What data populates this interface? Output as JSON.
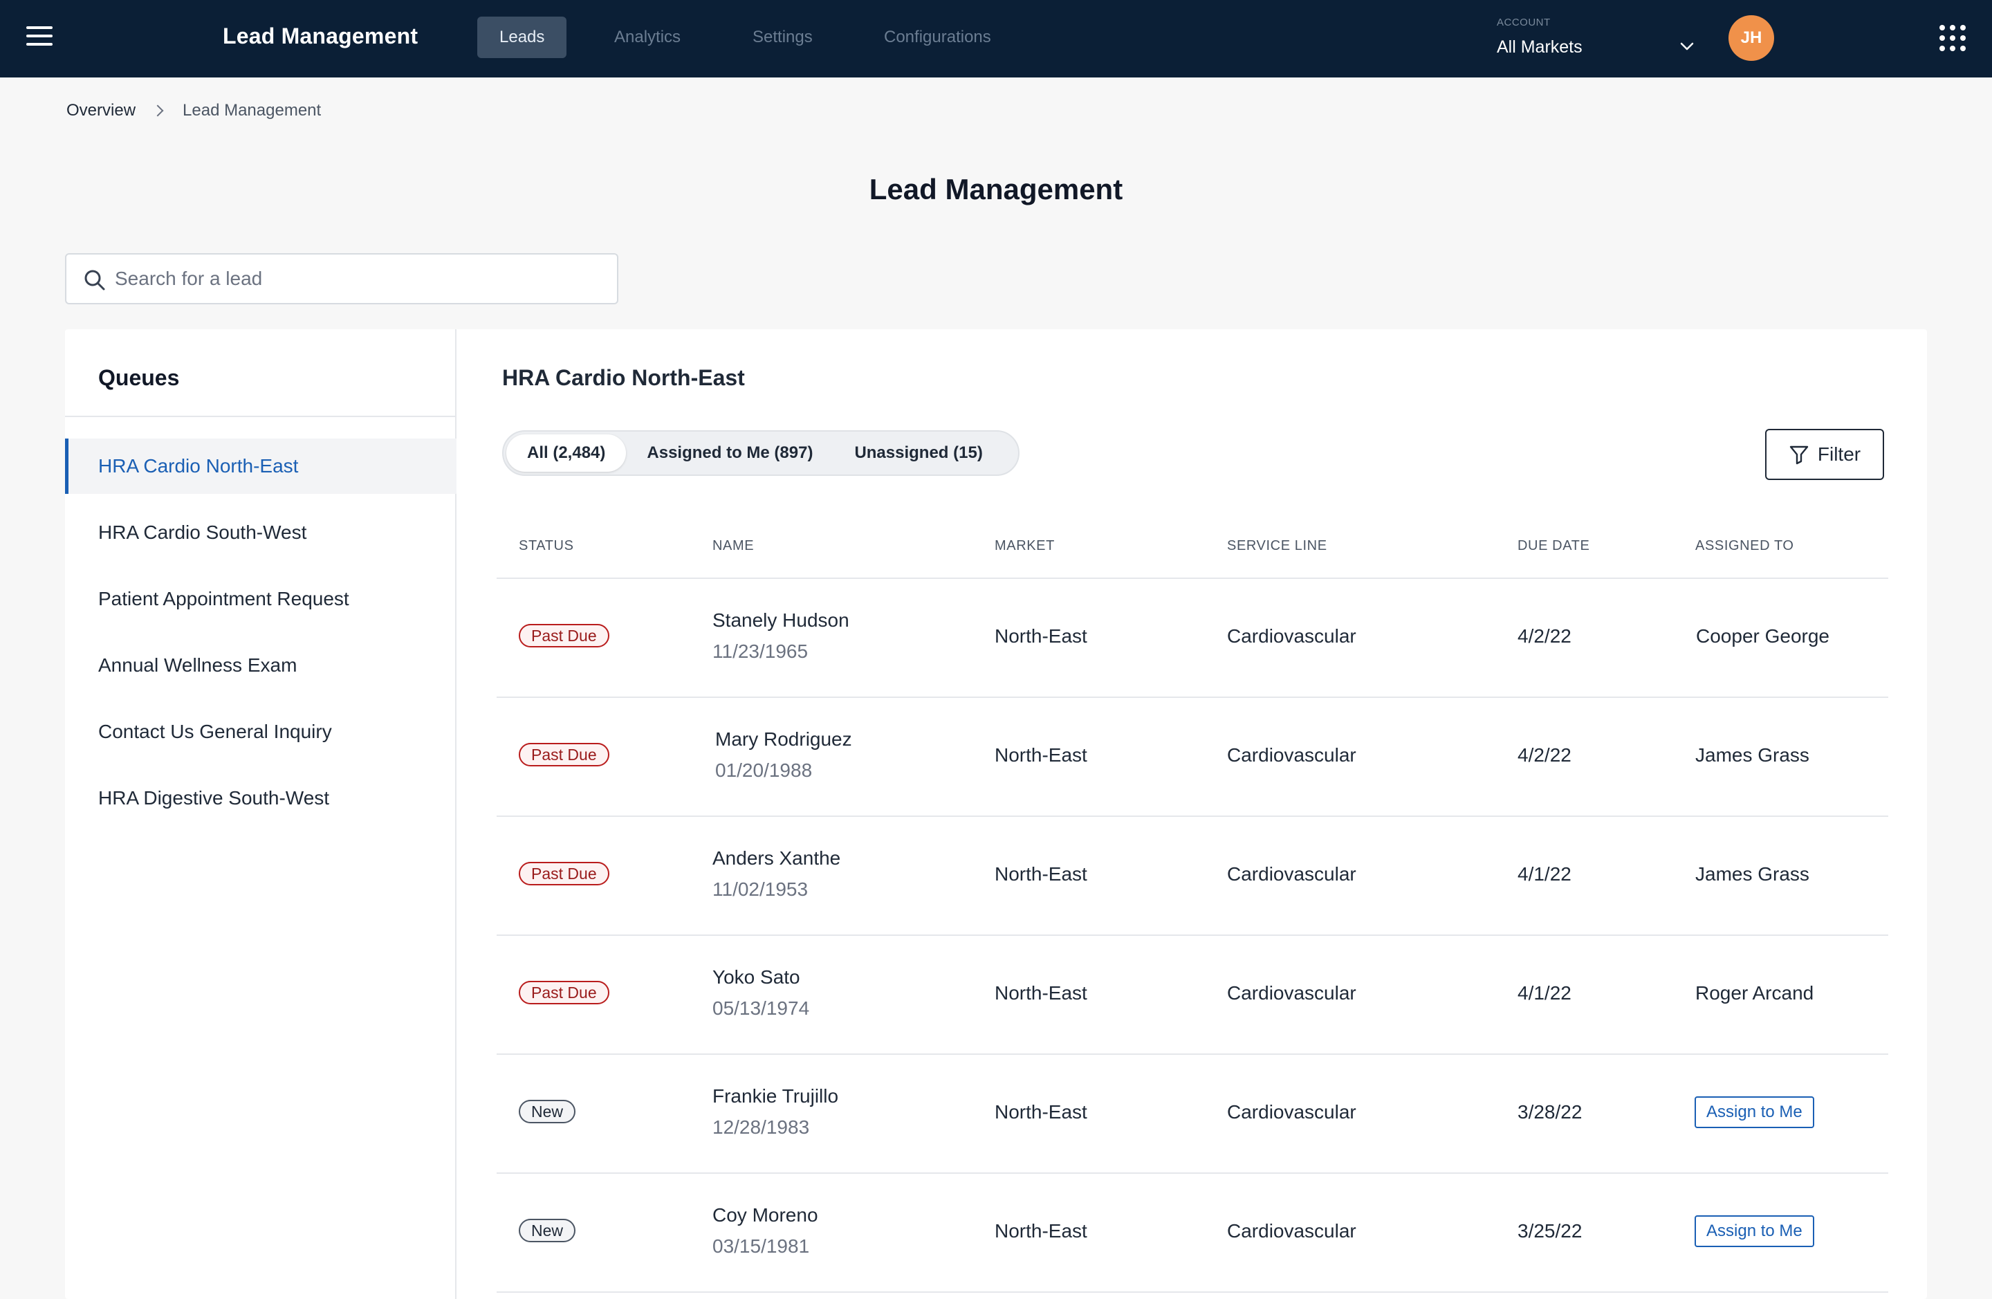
{
  "header": {
    "brand": "Lead Management",
    "tabs": [
      {
        "label": "Leads",
        "active": true
      },
      {
        "label": "Analytics",
        "active": false
      },
      {
        "label": "Settings",
        "active": false
      },
      {
        "label": "Configurations",
        "active": false
      }
    ],
    "account_label": "ACCOUNT",
    "account_value": "All Markets",
    "avatar_initials": "JH"
  },
  "breadcrumb": [
    "Overview",
    "Lead Management"
  ],
  "page_title": "Lead Management",
  "search": {
    "placeholder": "Search for a lead",
    "value": ""
  },
  "queues": {
    "title": "Queues",
    "items": [
      {
        "label": "HRA Cardio North-East",
        "active": true
      },
      {
        "label": "HRA Cardio South-West",
        "active": false
      },
      {
        "label": "Patient Appointment Request",
        "active": false
      },
      {
        "label": "Annual Wellness Exam",
        "active": false
      },
      {
        "label": "Contact Us General Inquiry",
        "active": false
      },
      {
        "label": "HRA Digestive South-West",
        "active": false
      }
    ]
  },
  "content": {
    "title": "HRA Cardio North-East",
    "segments": [
      {
        "label": "All (2,484)",
        "active": true
      },
      {
        "label": "Assigned to Me (897)",
        "active": false
      },
      {
        "label": "Unassigned (15)",
        "active": false
      }
    ],
    "filter_label": "Filter"
  },
  "table": {
    "columns": [
      "STATUS",
      "NAME",
      "MARKET",
      "SERVICE LINE",
      "DUE DATE",
      "ASSIGNED TO"
    ],
    "assign_label": "Assign to Me",
    "rows": [
      {
        "status": "Past Due",
        "status_type": "past",
        "name": "Stanely Hudson",
        "dob": "11/23/1965",
        "market": "North-East",
        "service_line": "Cardiovascular",
        "due_date": "4/2/22",
        "assigned_to": "Cooper George"
      },
      {
        "status": "Past Due",
        "status_type": "past",
        "name": "Mary Rodriguez",
        "dob": "01/20/1988",
        "market": "North-East",
        "service_line": "Cardiovascular",
        "due_date": "4/2/22",
        "assigned_to": "James Grass"
      },
      {
        "status": "Past Due",
        "status_type": "past",
        "name": "Anders Xanthe",
        "dob": "11/02/1953",
        "market": "North-East",
        "service_line": "Cardiovascular",
        "due_date": "4/1/22",
        "assigned_to": "James Grass"
      },
      {
        "status": "Past Due",
        "status_type": "past",
        "name": "Yoko Sato",
        "dob": "05/13/1974",
        "market": "North-East",
        "service_line": "Cardiovascular",
        "due_date": "4/1/22",
        "assigned_to": "Roger Arcand"
      },
      {
        "status": "New",
        "status_type": "new",
        "name": "Frankie Trujillo",
        "dob": "12/28/1983",
        "market": "North-East",
        "service_line": "Cardiovascular",
        "due_date": "3/28/22",
        "assigned_to": ""
      },
      {
        "status": "New",
        "status_type": "new",
        "name": "Coy Moreno",
        "dob": "03/15/1981",
        "market": "North-East",
        "service_line": "Cardiovascular",
        "due_date": "3/25/22",
        "assigned_to": ""
      }
    ]
  },
  "colors": {
    "topbar": "#0b1f36",
    "accent": "#1a5fb4",
    "past_due": "#b91c1c",
    "avatar": "#f0914a"
  }
}
